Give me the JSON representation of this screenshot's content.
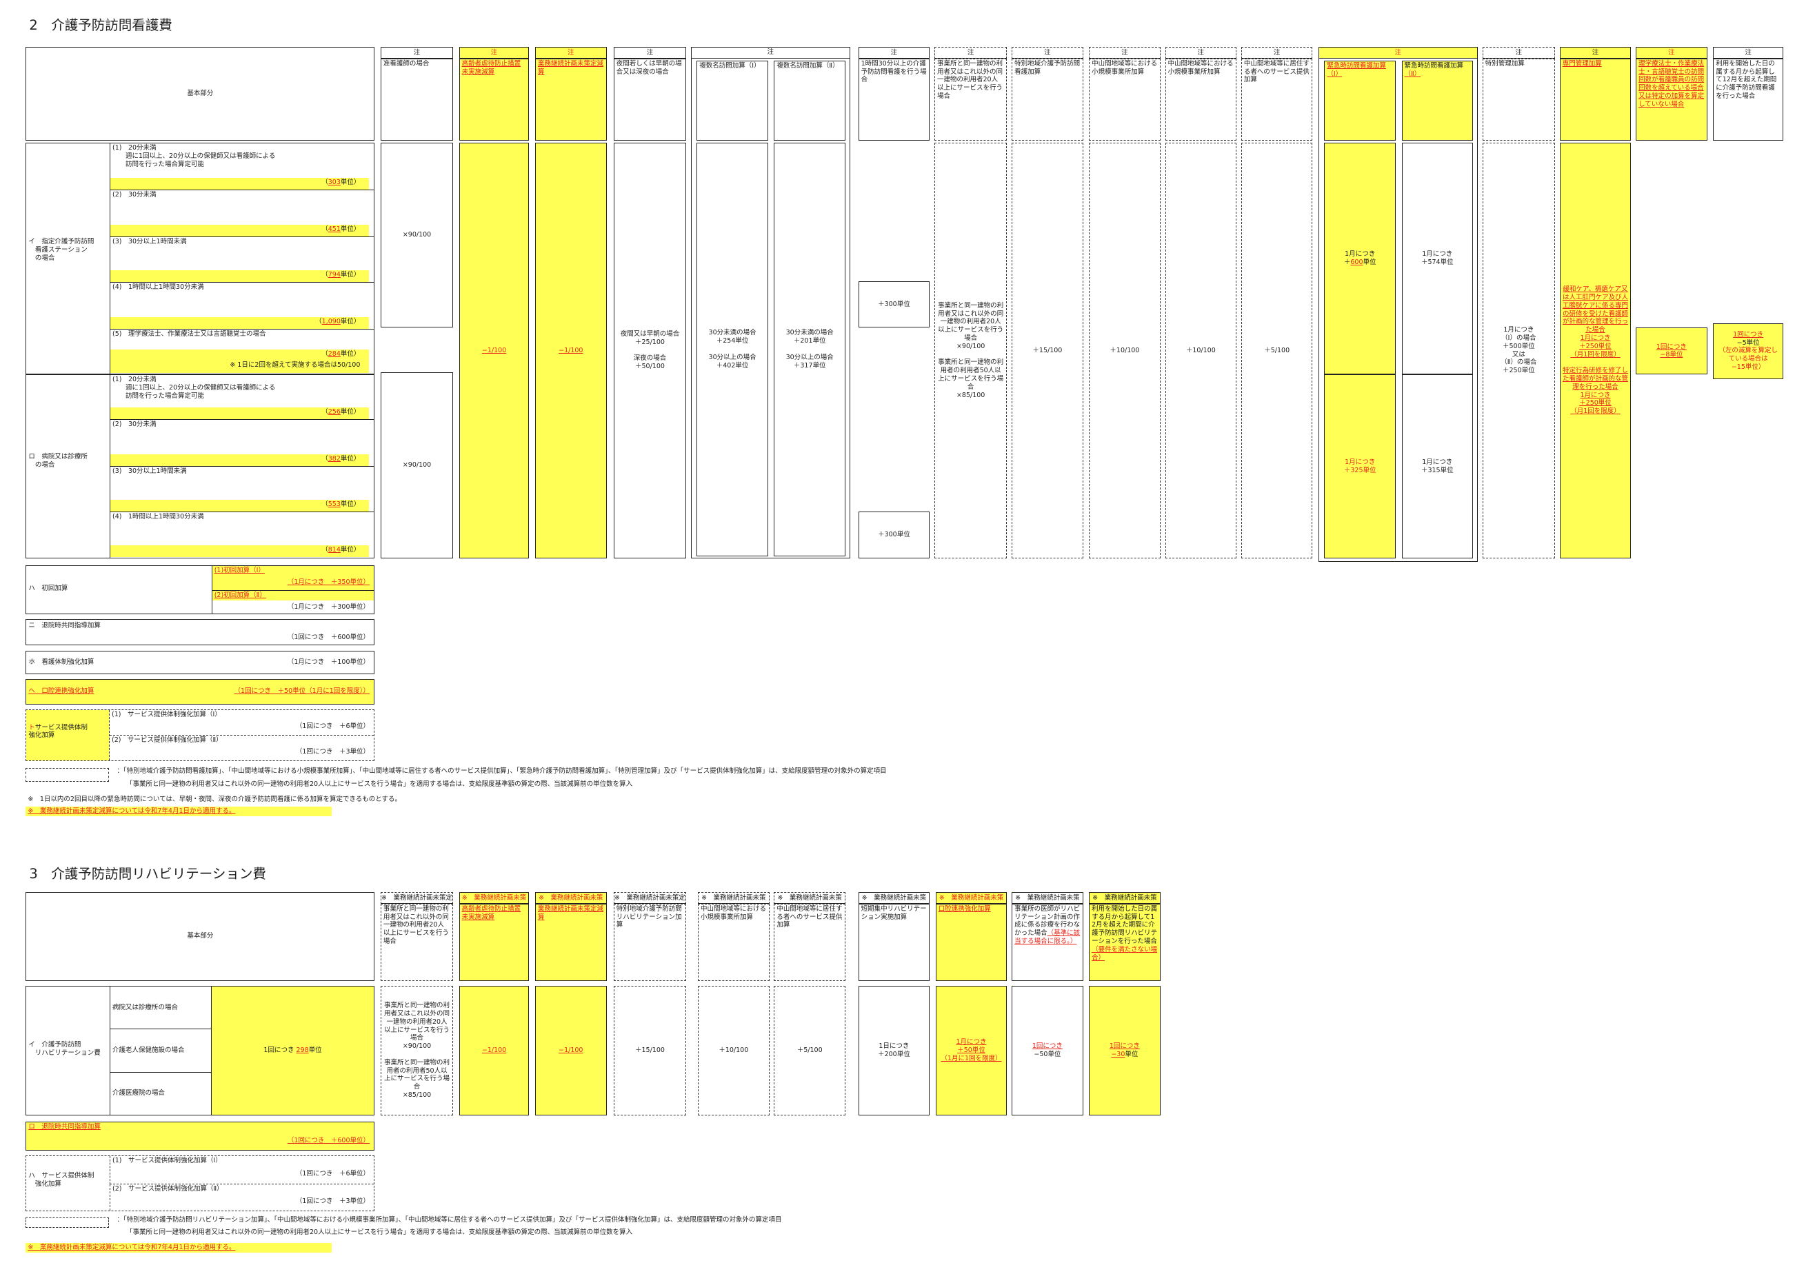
{
  "s2": {
    "title": "2　介護予防訪問看護費",
    "basic": "基本部分",
    "note": "注",
    "headers": {
      "jun": "准看護師の場合",
      "gyaku": "高齢者虐待防止措置未実施減算",
      "bcp": "業務継続計画未策定減算",
      "yakan": "夜間若しくは早朝の場合又は深夜の場合",
      "fuku1": "複数名訪問加算（Ⅰ）",
      "fuku2": "複数名訪問加算（Ⅱ）",
      "long": "1時間30分以上の介護予防訪問看護を行う場合",
      "douitsu": "事業所と同一建物の利用者又はこれ以外の同一建物の利用者20人以上にサービスを行う場合",
      "tokubetsu": "特別地域介護予防訪問看護加算",
      "chusan1": "中山間地域等における小規模事業所加算",
      "chusan2": "中山間地域等における小規模事業所加算",
      "kyoju": "中山間地域等に居住する者へのサービス提供加算",
      "kinkyu1": "緊急時訪問看護加算（Ⅰ）",
      "kinkyu2_a": "緊急時訪問看護加算",
      "kinkyu2_b": "（Ⅱ）",
      "tokukan": "特別管理加算",
      "senmon": "専門管理加算",
      "riha": "理学療法士・作業療法士・言語聴覚士の訪問回数が看護職員の訪問回数を超えている場合又は特定の加算を算定していない場合",
      "kaishi": "利用を開始した日の属する月から起算して12月を超えた期間に介護予防訪問看護を行った場合"
    },
    "i": {
      "label": "イ　指定介護予防訪問\n　看護ステーション\n　の場合",
      "rows": [
        {
          "name": "(1)　20分未満\n　　週に1回以上、20分以上の保健師又は看護師による\n　　訪問を行った場合算定可能",
          "units": "303"
        },
        {
          "name": "(2)　30分未満",
          "units": "451"
        },
        {
          "name": "(3)　30分以上1時間未満",
          "units": "794"
        },
        {
          "name": "(4)　1時間以上1時間30分未満",
          "units": "1,090"
        },
        {
          "name": "(5)　理学療法士、作業療法士又は言語聴覚士の場合",
          "units": "284",
          "extra": "※ 1日に2回を超えて実施する場合は50/100"
        }
      ]
    },
    "ro": {
      "label": "ロ　病院又は診療所\n　の場合",
      "rows": [
        {
          "name": "(1)　20分未満\n　　週に1回以上、20分以上の保健師又は看護師による\n　　訪問を行った場合算定可能",
          "units": "256"
        },
        {
          "name": "(2)　30分未満",
          "units": "382"
        },
        {
          "name": "(3)　30分以上1時間未満",
          "units": "553"
        },
        {
          "name": "(4)　1時間以上1時間30分未満",
          "units": "814"
        }
      ]
    },
    "unit_open": "（",
    "unit_close": "単位）",
    "values": {
      "jun": "×90/100",
      "gyaku": "−1/100",
      "bcp": "−1/100",
      "yakan": "夜間又は早朝の場合\n＋25/100\n\n深夜の場合\n＋50/100",
      "fuku1": "30分未満の場合\n＋254単位\n\n30分以上の場合\n＋402単位",
      "fuku2": "30分未満の場合\n＋201単位\n\n30分以上の場合\n＋317単位",
      "long": "＋300単位",
      "douitsu": "事業所と同一建物の利用者又はこれ以外の同一建物の利用者20人以上にサービスを行う場合\n×90/100\n\n事業所と同一建物の利用者の利用者50人以上にサービスを行う場合\n×85/100",
      "tokubetsu": "＋15/100",
      "chusan1": "＋10/100",
      "chusan2": "＋10/100",
      "kyoju": "＋5/100",
      "kinkyu1_i_a": "1月につき\n＋",
      "kinkyu1_i_b": "600",
      "kinkyu1_i_c": "単位",
      "kinkyu2_i": "1月につき\n＋574単位",
      "kinkyu1_ro": "1月につき\n＋325単位",
      "kinkyu2_ro": "1月につき\n＋315単位",
      "tokukan": "1月につき\n（Ⅰ）の場合\n＋500単位\n又は\n（Ⅱ）の場合\n＋250単位",
      "senmon1": "緩和ケア、褥瘡ケア又は人工肛門ケア及び人工膀胱ケアに係る専門の研修を受けた看護師が計画的な管理を行った場合\n1月につき\n＋250単位\n（月1回を限度）",
      "senmon2": "特定行為研修を修了した看護師が計画的な管理を行った場合\n1月につき\n＋250単位\n（月1回を限度）",
      "riha": "1回につき\n−8単位",
      "kaishi_a": "1回につき",
      "kaishi_b": "−5単位",
      "kaishi_c": "（左の減算を算定している場合は\n−15単位）"
    },
    "ha": {
      "label": "ハ　初回加算",
      "r1": "(1)初回加算（Ⅰ）",
      "r1v": "（1月につき　＋350単位）",
      "r2": "(2)初回加算（Ⅱ）",
      "r2v": "（1月につき　＋300単位）"
    },
    "ni": {
      "label": "ニ　退院時共同指導加算",
      "value": "（1回につき　＋600単位）"
    },
    "ho": {
      "label": "ホ　看護体制強化加算",
      "value": "（1月につき　＋100単位）"
    },
    "he": {
      "label": "ヘ　口腔連携強化加算",
      "value": "（1回につき　＋50単位（1月に1回を限度））"
    },
    "to": {
      "mark": "ト",
      "label": "サービス提供体制\n強化加算",
      "r1": "(1)　サービス提供体制強化加算（Ⅰ）",
      "r1v": "（1回につき　＋6単位）",
      "r2": "(2)　サービス提供体制強化加算（Ⅱ）",
      "r2v": "（1回につき　＋3単位）"
    },
    "legend1": "：「特別地域介護予防訪問看護加算」、「中山間地域等における小規模事業所加算」、「中山間地域等に居住する者へのサービス提供加算」、「緊急時介護予防訪問看護加算」、「特別管理加算」及び「サービス提供体制強化加算」は、支給限度額管理の対象外の算定項目",
    "legend2": "「事業所と同一建物の利用者又はこれ以外の同一建物の利用者20人以上にサービスを行う場合」を適用する場合は、支給限度基準額の算定の際、当該減算前の単位数を算入",
    "note1": "※　1日以内の2回目以降の緊急時訪問については、早朝・夜間、深夜の介護予防訪問看護に係る加算を算定できるものとする。",
    "note2": "※　業務継続計画未策定減算については令和7年4月1日から適用する。"
  },
  "s3": {
    "title": "3　介護予防訪問リハビリテーション費",
    "basic": "基本部分",
    "note": "※　業務継続計画未策定減算については令和7年4月1日から適用する。",
    "headers": {
      "douitsu": "事業所と同一建物の利用者又はこれ以外の同一建物の利用者20人以上にサービスを行う場合",
      "gyaku": "高齢者虐待防止措置未実施減算",
      "bcp": "業務継続計画未策定減算",
      "tokubetsu": "特別地域介護予防訪問リハビリテーション加算",
      "chusan": "中山間地域等における小規模事業所加算",
      "kyoju": "中山間地域等に居住する者へのサービス提供加算",
      "tanki": "短期集中リハビリテーション実施加算",
      "koku": "口腔連携強化加算",
      "ishi_a": "事業所の医師がリハビリテーション計画の作成に係る診療を行わなかった場合",
      "ishi_b": "（基準に該当する場合に限る。）",
      "kaishi_a": "利用を開始した日の属する月から起算して12月を超えた期間に介護予防訪問リハビリテーションを行った場合",
      "kaishi_b": "（要件を満たさない場合）"
    },
    "i": {
      "label": "イ　介護予防訪問\n　リハビリテーション費",
      "rows": [
        "病院又は診療所の場合",
        "介護老人保健施設の場合",
        "介護医療院の場合"
      ],
      "unit_a": "1回につき ",
      "unit_b": "298",
      "unit_c": "単位"
    },
    "values": {
      "douitsu": "事業所と同一建物の利用者又はこれ以外の同一建物の利用者20人以上にサービスを行う場合\n×90/100\n\n事業所と同一建物の利用者の利用者50人以上にサービスを行う場合\n×85/100",
      "gyaku": "−1/100",
      "bcp": "−1/100",
      "tokubetsu": "＋15/100",
      "chusan": "＋10/100",
      "kyoju": "＋5/100",
      "tanki": "1日につき\n＋200単位",
      "koku": "1月につき\n＋50単位\n（1月に1回を限度）",
      "ishi_a": "1回につき",
      "ishi_b": "−50単位",
      "kaishi_a": "1回につき",
      "kaishi_b": "−30",
      "kaishi_c": "単位"
    },
    "ro": {
      "label": "ロ　退院時共同指導加算",
      "value": "（1回につき　＋600単位）"
    },
    "ha": {
      "label": "ハ　サービス提供体制\n　強化加算",
      "r1": "(1)　サービス提供体制強化加算（Ⅰ）",
      "r1v": "（1回につき　＋6単位）",
      "r2": "(2)　サービス提供体制強化加算（Ⅱ）",
      "r2v": "（1回につき　＋3単位）"
    },
    "legend1": "：「特別地域介護予防訪問リハビリテーション加算」、「中山間地域等における小規模事業所加算」、「中山間地域等に居住する者へのサービス提供加算」及び「サービス提供体制強化加算」は、支給限度額管理の対象外の算定項目",
    "legend2": "「事業所と同一建物の利用者又はこれ以外の同一建物の利用者20人以上にサービスを行う場合」を適用する場合は、支給限度基準額の算定の際、当該減算前の単位数を算入"
  },
  "colors": {
    "highlight": "#ffff55",
    "red_text": "#e8261a"
  }
}
